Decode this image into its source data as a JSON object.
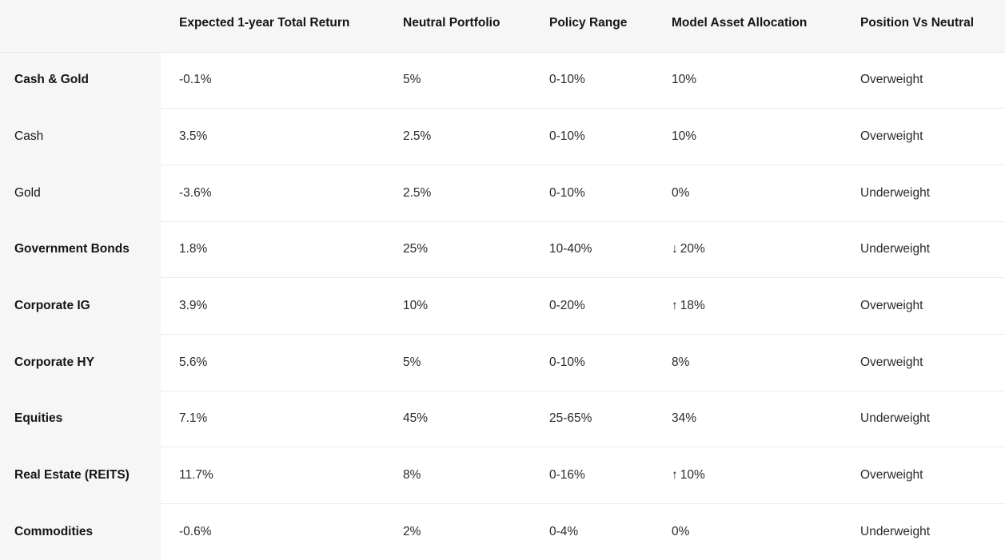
{
  "headers": [
    "",
    "Expected 1-year Total Return",
    "Neutral Portfolio",
    "Policy Range",
    "Model Asset Allocation",
    "Position Vs Neutral"
  ],
  "rows": [
    {
      "asset": "Cash & Gold",
      "bold": true,
      "expected_return": "-0.1%",
      "neutral": "5%",
      "policy_range": "0-10%",
      "arrow": "",
      "model_allocation": "10%",
      "position": "Overweight"
    },
    {
      "asset": "Cash",
      "bold": false,
      "expected_return": "3.5%",
      "neutral": "2.5%",
      "policy_range": "0-10%",
      "arrow": "",
      "model_allocation": "10%",
      "position": "Overweight"
    },
    {
      "asset": "Gold",
      "bold": false,
      "expected_return": "-3.6%",
      "neutral": "2.5%",
      "policy_range": "0-10%",
      "arrow": "",
      "model_allocation": "0%",
      "position": "Underweight"
    },
    {
      "asset": "Government Bonds",
      "bold": true,
      "expected_return": "1.8%",
      "neutral": "25%",
      "policy_range": "10-40%",
      "arrow": "↓",
      "model_allocation": "20%",
      "position": "Underweight"
    },
    {
      "asset": "Corporate IG",
      "bold": true,
      "expected_return": "3.9%",
      "neutral": "10%",
      "policy_range": "0-20%",
      "arrow": "↑",
      "model_allocation": "18%",
      "position": "Overweight"
    },
    {
      "asset": "Corporate HY",
      "bold": true,
      "expected_return": "5.6%",
      "neutral": "5%",
      "policy_range": "0-10%",
      "arrow": "",
      "model_allocation": "8%",
      "position": "Overweight"
    },
    {
      "asset": "Equities",
      "bold": true,
      "expected_return": "7.1%",
      "neutral": "45%",
      "policy_range": "25-65%",
      "arrow": "",
      "model_allocation": "34%",
      "position": "Underweight"
    },
    {
      "asset": "Real Estate (REITS)",
      "bold": true,
      "expected_return": "11.7%",
      "neutral": "8%",
      "policy_range": "0-16%",
      "arrow": "↑",
      "model_allocation": "10%",
      "position": "Overweight"
    },
    {
      "asset": "Commodities",
      "bold": true,
      "expected_return": "-0.6%",
      "neutral": "2%",
      "policy_range": "0-4%",
      "arrow": "",
      "model_allocation": "0%",
      "position": "Underweight"
    }
  ],
  "colors": {
    "header_background": "#f6f6f6",
    "row_label_background": "#f6f6f6",
    "divider": "#ececec"
  },
  "icons": {
    "up": "arrow-up-icon",
    "down": "arrow-down-icon"
  }
}
